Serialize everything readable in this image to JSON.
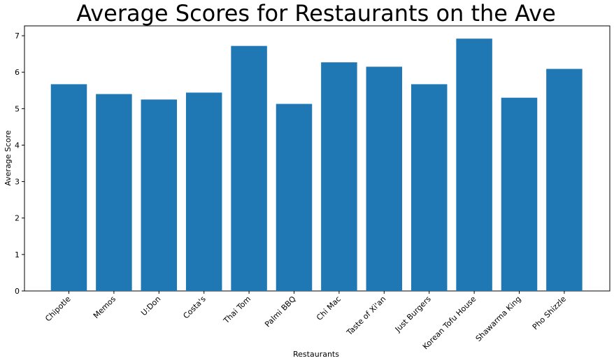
{
  "chart_data": {
    "type": "bar",
    "title": "Average Scores for Restaurants on the Ave",
    "xlabel": "Restaurants",
    "ylabel": "Average Score",
    "categories": [
      "Chipotle",
      "Memos",
      "U:Don",
      "Costa's",
      "Thai Tom",
      "Palmi BBQ",
      "Chi Mac",
      "Taste of Xi'an",
      "Just Burgers",
      "Korean Tofu House",
      "Shawarma King",
      "Pho Shizzle"
    ],
    "values": [
      5.67,
      5.4,
      5.25,
      5.44,
      6.72,
      5.13,
      6.27,
      6.15,
      5.67,
      6.92,
      5.3,
      6.09
    ],
    "ylim": [
      0,
      7.27
    ],
    "yticks": [
      0,
      1,
      2,
      3,
      4,
      5,
      6,
      7
    ],
    "grid": false,
    "legend": "none",
    "bar_color": "#1f77b4"
  }
}
